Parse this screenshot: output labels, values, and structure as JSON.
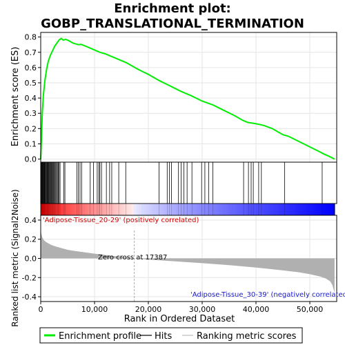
{
  "chart_data": {
    "type": "line",
    "title_line1": "Enrichment plot:",
    "title_line2": "GOBP_TRANSLATIONAL_TERMINATION",
    "xlabel": "Rank in Ordered Dataset",
    "es_ylabel": "Enrichment score (ES)",
    "metric_ylabel": "Ranked list metric (Signal2Noise)",
    "xlim": [
      0,
      55000
    ],
    "es_ylim": [
      -0.02,
      0.83
    ],
    "metric_ylim": [
      -0.45,
      0.45
    ],
    "x_ticks": [
      0,
      10000,
      20000,
      30000,
      40000,
      50000
    ],
    "x_tick_labels": [
      "0",
      "10,000",
      "20,000",
      "30,000",
      "40,000",
      "50,000"
    ],
    "es_ticks": [
      0.0,
      0.1,
      0.2,
      0.3,
      0.4,
      0.5,
      0.6,
      0.7,
      0.8
    ],
    "es_tick_labels": [
      "0.0",
      "0.1",
      "0.2",
      "0.3",
      "0.4",
      "0.5",
      "0.6",
      "0.7",
      "0.8"
    ],
    "metric_ticks": [
      -0.4,
      -0.2,
      0.0,
      0.2,
      0.4
    ],
    "metric_tick_labels": [
      "-0.4",
      "-0.2",
      "0.0",
      "0.2",
      "0.4"
    ],
    "positive_label": "'Adipose-Tissue_20-29' (positively correlated)",
    "negative_label": "'Adipose-Tissue_30-39' (negatively correlated)",
    "zero_cross_label": "Zero cross at 17387",
    "zero_cross": 17387,
    "n_genes": 54600,
    "enrichment_profile": {
      "x": [
        0,
        100,
        300,
        500,
        800,
        1100,
        1400,
        1800,
        2200,
        2600,
        3000,
        3400,
        3800,
        4200,
        4600,
        5000,
        5500,
        6000,
        6500,
        7000,
        7500,
        8000,
        9000,
        10000,
        11000,
        12000,
        13000,
        14000,
        16000,
        18000,
        20000,
        22000,
        24000,
        26000,
        28000,
        30000,
        32000,
        34000,
        36000,
        37500,
        38500,
        39500,
        40500,
        41500,
        43000,
        45000,
        46000,
        48000,
        50000,
        52000,
        52500,
        53500,
        54600
      ],
      "y": [
        0.0,
        0.1,
        0.3,
        0.42,
        0.52,
        0.59,
        0.64,
        0.68,
        0.71,
        0.74,
        0.76,
        0.78,
        0.79,
        0.78,
        0.785,
        0.78,
        0.77,
        0.76,
        0.755,
        0.75,
        0.752,
        0.745,
        0.73,
        0.715,
        0.7,
        0.69,
        0.675,
        0.66,
        0.63,
        0.59,
        0.555,
        0.515,
        0.48,
        0.445,
        0.415,
        0.38,
        0.355,
        0.32,
        0.285,
        0.255,
        0.24,
        0.235,
        0.228,
        0.22,
        0.2,
        0.16,
        0.15,
        0.115,
        0.08,
        0.045,
        0.035,
        0.02,
        0.0
      ]
    },
    "hits": [
      60,
      120,
      200,
      290,
      380,
      470,
      560,
      650,
      750,
      850,
      960,
      1070,
      1180,
      1290,
      1400,
      1520,
      1640,
      1760,
      1880,
      2000,
      2130,
      2260,
      2390,
      2520,
      2660,
      2800,
      2950,
      3100,
      3260,
      3420,
      3600,
      4300,
      4500,
      6700,
      7000,
      7300,
      7600,
      9200,
      9800,
      10500,
      10800,
      11000,
      11300,
      12200,
      12800,
      13200,
      14500,
      15800,
      22000,
      23500,
      23900,
      24300,
      25600,
      26100,
      26600,
      27200,
      28100,
      29900,
      30500,
      31200,
      32000,
      37700,
      38600,
      39100,
      39500,
      40500,
      41000,
      45300,
      52300
    ],
    "metric": {
      "x": [
        0,
        100,
        300,
        600,
        1000,
        1500,
        2000,
        3000,
        4000,
        5000,
        6000,
        8000,
        10000,
        12000,
        14000,
        16000,
        17387,
        20000,
        25000,
        30000,
        35000,
        40000,
        45000,
        48000,
        50000,
        52000,
        53000,
        53800,
        54200,
        54600
      ],
      "y": [
        0.3,
        0.26,
        0.22,
        0.19,
        0.17,
        0.155,
        0.14,
        0.12,
        0.105,
        0.09,
        0.08,
        0.065,
        0.05,
        0.035,
        0.022,
        0.01,
        0.0,
        -0.012,
        -0.03,
        -0.05,
        -0.07,
        -0.095,
        -0.125,
        -0.145,
        -0.165,
        -0.19,
        -0.21,
        -0.24,
        -0.28,
        -0.36
      ]
    },
    "legend": [
      {
        "label": "Enrichment profile",
        "color": "#00ee00"
      },
      {
        "label": "Hits",
        "color": "#000000"
      },
      {
        "label": "Ranking metric scores",
        "color": "#bbbbbb"
      }
    ],
    "colors": {
      "es_line": "#00ee00",
      "hit": "#000000",
      "metric_fill": "#b0b0b0",
      "zero_cross_line": "#aaaaaa",
      "positive": "#ff0000",
      "negative": "#0000ff"
    }
  }
}
